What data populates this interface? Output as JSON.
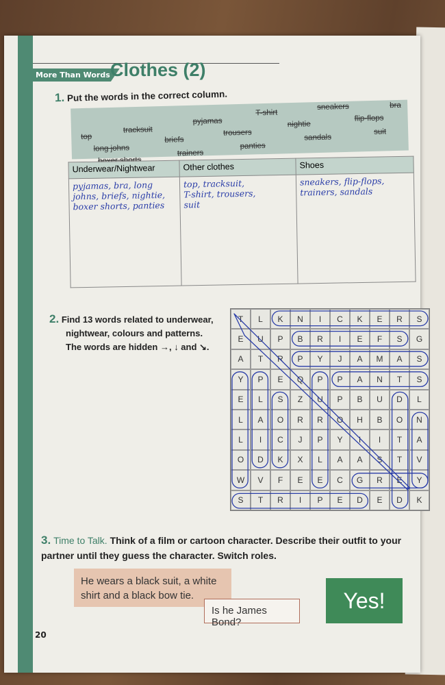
{
  "header": {
    "tag": "More Than Words",
    "title": "Clothes (2)"
  },
  "ex1": {
    "num": "1.",
    "instruction": "Put the words in the correct column.",
    "words": [
      "top",
      "tracksuit",
      "pyjamas",
      "T-shirt",
      "sneakers",
      "bra",
      "long johns",
      "briefs",
      "trousers",
      "nightie",
      "flip-flops",
      "boxer shorts",
      "trainers",
      "panties",
      "sandals",
      "suit"
    ],
    "columns": [
      "Underwear/Nightwear",
      "Other clothes",
      "Shoes"
    ],
    "answers": [
      [
        "pyjamas, bra, long",
        "johns, briefs, nightie,",
        "boxer shorts, panties"
      ],
      [
        "top, tracksuit,",
        "T-shirt, trousers,",
        "suit"
      ],
      [
        "sneakers, flip-flops,",
        "trainers, sandals"
      ]
    ]
  },
  "ex2": {
    "num": "2.",
    "lines": [
      "Find 13 words related to underwear,",
      "nightwear, colours and patterns.",
      "The words are hidden →, ↓ and ↘."
    ],
    "grid": [
      "TLKNICKERS",
      "EUPBRIEFSG",
      "ATRPYJAMAS",
      "YPEQPPANTS",
      "ELSZUPBUDL",
      "LAORROHBON",
      "LICJPYIITA",
      "ODKXLAASTV",
      "WVFEECGREY",
      "STRIPEDEDK"
    ]
  },
  "ex3": {
    "num": "3.",
    "lead": "Time to Talk.",
    "text": "Think of a film or cartoon character. Describe their outfit to your partner until they guess the character. Switch roles.",
    "bubble1": "He wears a black suit, a white shirt and a black bow tie.",
    "bubble2": "Is he James Bond?",
    "bubble3": "Yes!"
  },
  "page_number": "20",
  "colors": {
    "accent": "#4f8a73",
    "ink": "#2a3da8",
    "bubble_green": "#3f8a58"
  }
}
